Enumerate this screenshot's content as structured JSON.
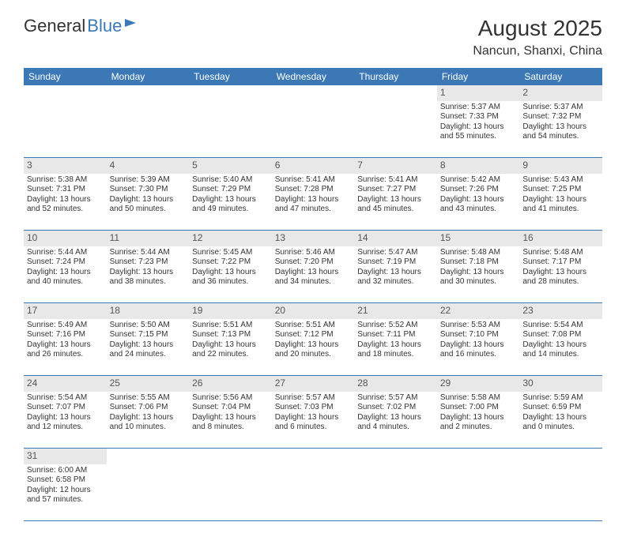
{
  "logo": {
    "general": "General",
    "blue": "Blue"
  },
  "header": {
    "month_year": "August 2025",
    "location": "Nancun, Shanxi, China"
  },
  "colors": {
    "accent": "#3b78b5",
    "daynum_bg": "#e8e8e8",
    "text": "#333333"
  },
  "daynames": [
    "Sunday",
    "Monday",
    "Tuesday",
    "Wednesday",
    "Thursday",
    "Friday",
    "Saturday"
  ],
  "weeks": [
    [
      null,
      null,
      null,
      null,
      null,
      {
        "n": "1",
        "sr": "Sunrise: 5:37 AM",
        "ss": "Sunset: 7:33 PM",
        "dl": "Daylight: 13 hours and 55 minutes."
      },
      {
        "n": "2",
        "sr": "Sunrise: 5:37 AM",
        "ss": "Sunset: 7:32 PM",
        "dl": "Daylight: 13 hours and 54 minutes."
      }
    ],
    [
      {
        "n": "3",
        "sr": "Sunrise: 5:38 AM",
        "ss": "Sunset: 7:31 PM",
        "dl": "Daylight: 13 hours and 52 minutes."
      },
      {
        "n": "4",
        "sr": "Sunrise: 5:39 AM",
        "ss": "Sunset: 7:30 PM",
        "dl": "Daylight: 13 hours and 50 minutes."
      },
      {
        "n": "5",
        "sr": "Sunrise: 5:40 AM",
        "ss": "Sunset: 7:29 PM",
        "dl": "Daylight: 13 hours and 49 minutes."
      },
      {
        "n": "6",
        "sr": "Sunrise: 5:41 AM",
        "ss": "Sunset: 7:28 PM",
        "dl": "Daylight: 13 hours and 47 minutes."
      },
      {
        "n": "7",
        "sr": "Sunrise: 5:41 AM",
        "ss": "Sunset: 7:27 PM",
        "dl": "Daylight: 13 hours and 45 minutes."
      },
      {
        "n": "8",
        "sr": "Sunrise: 5:42 AM",
        "ss": "Sunset: 7:26 PM",
        "dl": "Daylight: 13 hours and 43 minutes."
      },
      {
        "n": "9",
        "sr": "Sunrise: 5:43 AM",
        "ss": "Sunset: 7:25 PM",
        "dl": "Daylight: 13 hours and 41 minutes."
      }
    ],
    [
      {
        "n": "10",
        "sr": "Sunrise: 5:44 AM",
        "ss": "Sunset: 7:24 PM",
        "dl": "Daylight: 13 hours and 40 minutes."
      },
      {
        "n": "11",
        "sr": "Sunrise: 5:44 AM",
        "ss": "Sunset: 7:23 PM",
        "dl": "Daylight: 13 hours and 38 minutes."
      },
      {
        "n": "12",
        "sr": "Sunrise: 5:45 AM",
        "ss": "Sunset: 7:22 PM",
        "dl": "Daylight: 13 hours and 36 minutes."
      },
      {
        "n": "13",
        "sr": "Sunrise: 5:46 AM",
        "ss": "Sunset: 7:20 PM",
        "dl": "Daylight: 13 hours and 34 minutes."
      },
      {
        "n": "14",
        "sr": "Sunrise: 5:47 AM",
        "ss": "Sunset: 7:19 PM",
        "dl": "Daylight: 13 hours and 32 minutes."
      },
      {
        "n": "15",
        "sr": "Sunrise: 5:48 AM",
        "ss": "Sunset: 7:18 PM",
        "dl": "Daylight: 13 hours and 30 minutes."
      },
      {
        "n": "16",
        "sr": "Sunrise: 5:48 AM",
        "ss": "Sunset: 7:17 PM",
        "dl": "Daylight: 13 hours and 28 minutes."
      }
    ],
    [
      {
        "n": "17",
        "sr": "Sunrise: 5:49 AM",
        "ss": "Sunset: 7:16 PM",
        "dl": "Daylight: 13 hours and 26 minutes."
      },
      {
        "n": "18",
        "sr": "Sunrise: 5:50 AM",
        "ss": "Sunset: 7:15 PM",
        "dl": "Daylight: 13 hours and 24 minutes."
      },
      {
        "n": "19",
        "sr": "Sunrise: 5:51 AM",
        "ss": "Sunset: 7:13 PM",
        "dl": "Daylight: 13 hours and 22 minutes."
      },
      {
        "n": "20",
        "sr": "Sunrise: 5:51 AM",
        "ss": "Sunset: 7:12 PM",
        "dl": "Daylight: 13 hours and 20 minutes."
      },
      {
        "n": "21",
        "sr": "Sunrise: 5:52 AM",
        "ss": "Sunset: 7:11 PM",
        "dl": "Daylight: 13 hours and 18 minutes."
      },
      {
        "n": "22",
        "sr": "Sunrise: 5:53 AM",
        "ss": "Sunset: 7:10 PM",
        "dl": "Daylight: 13 hours and 16 minutes."
      },
      {
        "n": "23",
        "sr": "Sunrise: 5:54 AM",
        "ss": "Sunset: 7:08 PM",
        "dl": "Daylight: 13 hours and 14 minutes."
      }
    ],
    [
      {
        "n": "24",
        "sr": "Sunrise: 5:54 AM",
        "ss": "Sunset: 7:07 PM",
        "dl": "Daylight: 13 hours and 12 minutes."
      },
      {
        "n": "25",
        "sr": "Sunrise: 5:55 AM",
        "ss": "Sunset: 7:06 PM",
        "dl": "Daylight: 13 hours and 10 minutes."
      },
      {
        "n": "26",
        "sr": "Sunrise: 5:56 AM",
        "ss": "Sunset: 7:04 PM",
        "dl": "Daylight: 13 hours and 8 minutes."
      },
      {
        "n": "27",
        "sr": "Sunrise: 5:57 AM",
        "ss": "Sunset: 7:03 PM",
        "dl": "Daylight: 13 hours and 6 minutes."
      },
      {
        "n": "28",
        "sr": "Sunrise: 5:57 AM",
        "ss": "Sunset: 7:02 PM",
        "dl": "Daylight: 13 hours and 4 minutes."
      },
      {
        "n": "29",
        "sr": "Sunrise: 5:58 AM",
        "ss": "Sunset: 7:00 PM",
        "dl": "Daylight: 13 hours and 2 minutes."
      },
      {
        "n": "30",
        "sr": "Sunrise: 5:59 AM",
        "ss": "Sunset: 6:59 PM",
        "dl": "Daylight: 13 hours and 0 minutes."
      }
    ],
    [
      {
        "n": "31",
        "sr": "Sunrise: 6:00 AM",
        "ss": "Sunset: 6:58 PM",
        "dl": "Daylight: 12 hours and 57 minutes."
      },
      null,
      null,
      null,
      null,
      null,
      null
    ]
  ]
}
